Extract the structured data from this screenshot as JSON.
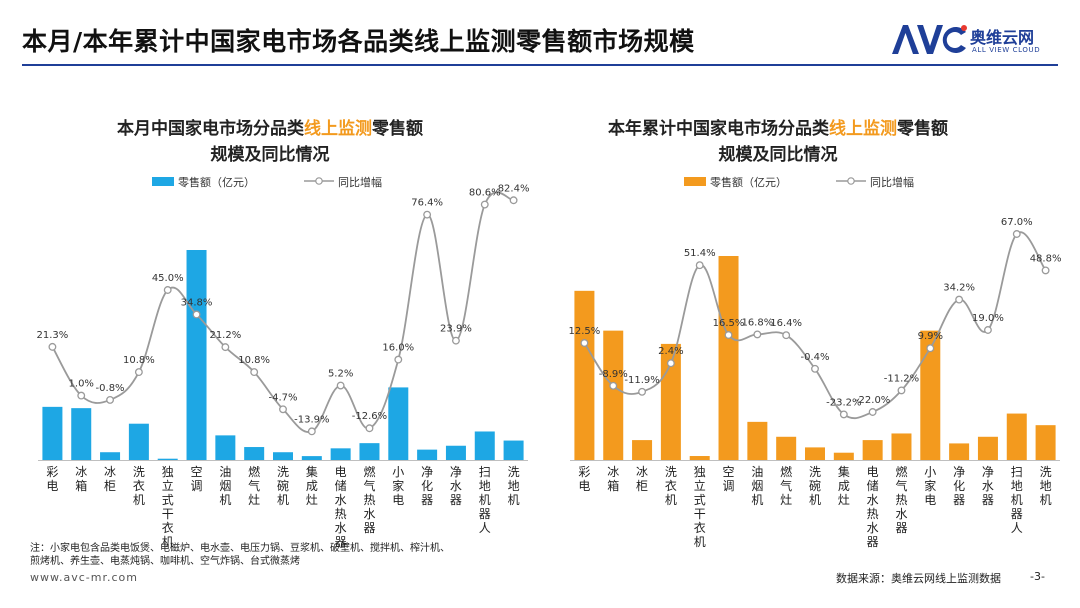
{
  "header": {
    "title": "本月/本年累计中国家电市场各品类线上监测零售额市场规模",
    "logo_text": "奥维云网",
    "logo_subtext": "ALL VIEW CLOUD",
    "logo_mark": "AVC",
    "brand_color": "#1f3f98"
  },
  "chart_data": [
    {
      "type": "bar",
      "title_parts": [
        "本月中国家电市场分品类",
        "线上监测",
        "零售额"
      ],
      "title_line2": "规模及同比情况",
      "highlight_color": "#f39a1e",
      "bar_color": "#1ea7e4",
      "line_color": "#9a9a9a",
      "categories": [
        "彩电",
        "冰箱",
        "冰柜",
        "洗衣机",
        "独立式干衣机",
        "空调",
        "油烟机",
        "燃气灶",
        "洗碗机",
        "集成灶",
        "电储水热水器",
        "燃气热水器",
        "小家电",
        "净化器",
        "净水器",
        "扫地机器人",
        "洗地机"
      ],
      "series": [
        {
          "name": "零售额（亿元）",
          "type": "bar",
          "values": [
            41,
            40,
            6,
            28,
            1,
            162,
            19,
            10,
            6,
            3,
            9,
            13,
            56,
            8,
            11,
            22,
            15
          ]
        },
        {
          "name": "同比增幅",
          "type": "line",
          "values": [
            21.3,
            1.0,
            -0.8,
            10.8,
            45.0,
            34.8,
            21.2,
            10.8,
            -4.7,
            -13.9,
            5.2,
            -12.6,
            16.0,
            76.4,
            23.9,
            80.6,
            82.4
          ],
          "labels": [
            "21.3%",
            "1.0%",
            "-0.8%",
            "10.8%",
            "45.0%",
            "34.8%",
            "21.2%",
            "10.8%",
            "-4.7%",
            "-13.9%",
            "5.2%",
            "-12.6%",
            "16.0%",
            "76.4%",
            "23.9%",
            "80.6%",
            "82.4%"
          ]
        }
      ]
    },
    {
      "type": "bar",
      "title_parts": [
        "本年累计中国家电市场分品类",
        "线上监测",
        "零售额"
      ],
      "title_line2": "规模及同比情况",
      "highlight_color": "#f39a1e",
      "bar_color": "#f39a1e",
      "line_color": "#9a9a9a",
      "categories": [
        "彩电",
        "冰箱",
        "冰柜",
        "洗衣机",
        "独立式干衣机",
        "空调",
        "油烟机",
        "燃气灶",
        "洗碗机",
        "集成灶",
        "电储水热水器",
        "燃气热水器",
        "小家电",
        "净化器",
        "净水器",
        "扫地机器人",
        "洗地机"
      ],
      "series": [
        {
          "name": "零售额（亿元）",
          "type": "bar",
          "values": [
            510,
            390,
            60,
            350,
            12,
            615,
            115,
            70,
            38,
            22,
            60,
            80,
            390,
            50,
            70,
            140,
            105
          ]
        },
        {
          "name": "同比增幅",
          "type": "line",
          "values": [
            12.5,
            -8.9,
            -11.9,
            2.4,
            51.4,
            16.5,
            16.8,
            16.4,
            -0.4,
            -23.2,
            -22.0,
            -11.2,
            9.9,
            34.2,
            19.0,
            67.0,
            48.8
          ],
          "labels": [
            "12.5%",
            "-8.9%",
            "-11.9%",
            "2.4%",
            "51.4%",
            "16.5%",
            "16.8%",
            "16.4%",
            "-0.4%",
            "-23.2%",
            "-22.0%",
            "-11.2%",
            "9.9%",
            "34.2%",
            "19.0%",
            "67.0%",
            "48.8%"
          ]
        }
      ]
    }
  ],
  "footer": {
    "note_line1": "注：小家电包含品类电饭煲、电磁炉、电水壶、电压力锅、豆浆机、破壁机、搅拌机、榨汁机、",
    "note_line2": "煎烤机、养生壶、电蒸炖锅、咖啡机、空气炸锅、台式微蒸烤",
    "website": "www.avc-mr.com",
    "source": "数据来源：奥维云网线上监测数据",
    "page": "-3-"
  }
}
